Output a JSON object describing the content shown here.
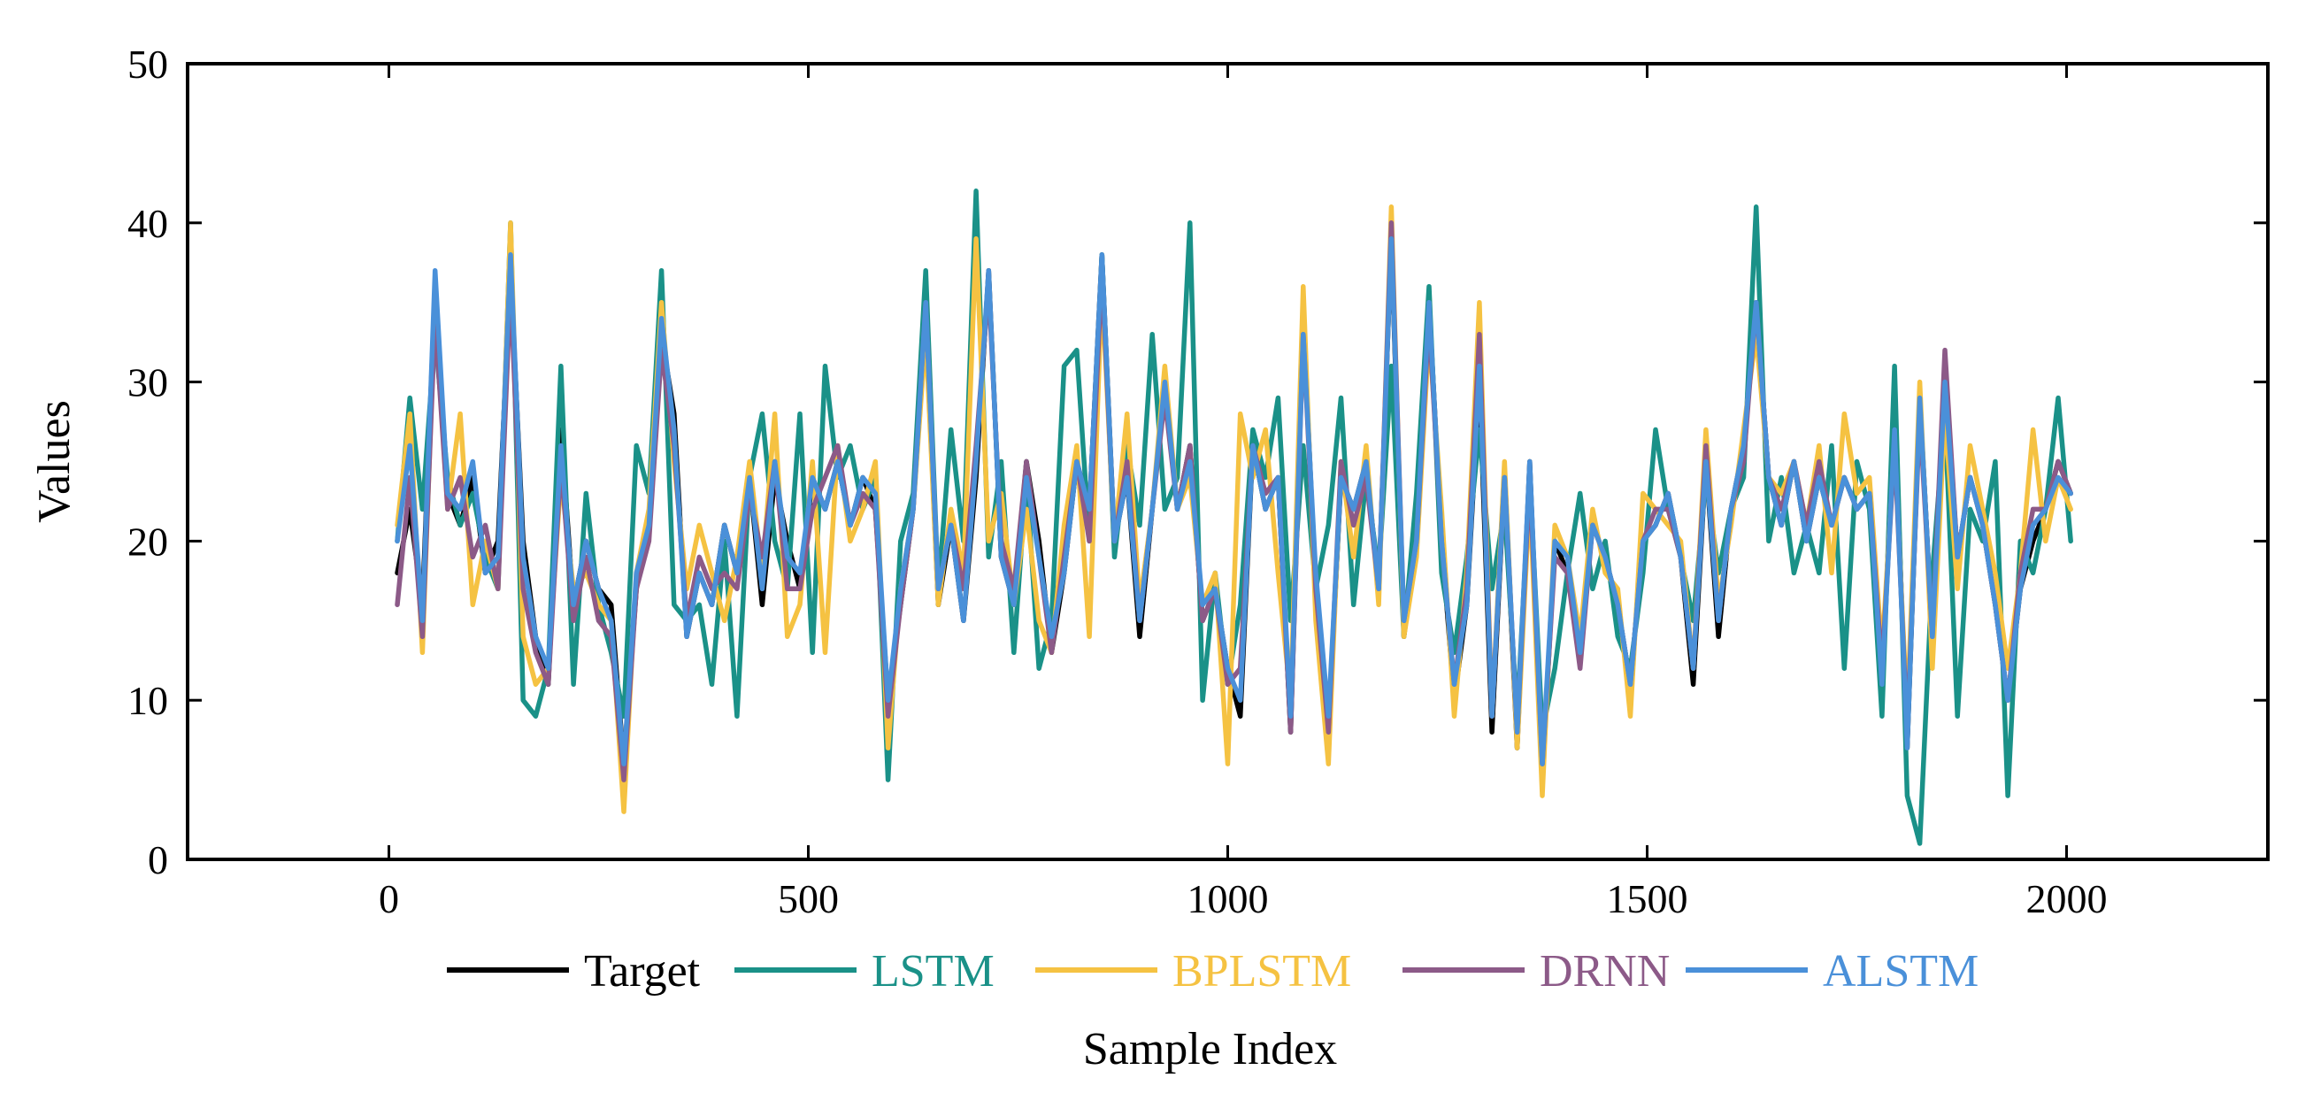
{
  "chart_data": {
    "type": "line",
    "title": "",
    "xlabel": "Sample Index",
    "ylabel": "Values",
    "xlim": [
      -240,
      2240
    ],
    "ylim": [
      0,
      50
    ],
    "x_ticks": [
      0,
      500,
      1000,
      1500,
      2000
    ],
    "y_ticks": [
      0,
      10,
      20,
      30,
      40,
      50
    ],
    "x_tick_labels": [
      "0",
      "500",
      "1000",
      "1500",
      "2000"
    ],
    "y_tick_labels": [
      "0",
      "10",
      "20",
      "30",
      "40",
      "50"
    ],
    "grid": false,
    "legend_position": "bottom-center",
    "x": [
      10,
      25,
      40,
      55,
      70,
      85,
      100,
      115,
      130,
      145,
      160,
      175,
      190,
      205,
      220,
      235,
      250,
      265,
      280,
      295,
      310,
      325,
      340,
      355,
      370,
      385,
      400,
      415,
      430,
      445,
      460,
      475,
      490,
      505,
      520,
      535,
      550,
      565,
      580,
      595,
      610,
      625,
      640,
      655,
      670,
      685,
      700,
      715,
      730,
      745,
      760,
      775,
      790,
      805,
      820,
      835,
      850,
      865,
      880,
      895,
      910,
      925,
      940,
      955,
      970,
      985,
      1000,
      1015,
      1030,
      1045,
      1060,
      1075,
      1090,
      1105,
      1120,
      1135,
      1150,
      1165,
      1180,
      1195,
      1210,
      1225,
      1240,
      1255,
      1270,
      1285,
      1300,
      1315,
      1330,
      1345,
      1360,
      1375,
      1390,
      1405,
      1420,
      1435,
      1450,
      1465,
      1480,
      1495,
      1510,
      1525,
      1540,
      1555,
      1570,
      1585,
      1600,
      1615,
      1630,
      1645,
      1660,
      1675,
      1690,
      1705,
      1720,
      1735,
      1750,
      1765,
      1780,
      1795,
      1810,
      1825,
      1840,
      1855,
      1870,
      1885,
      1900,
      1915,
      1930,
      1945,
      1960,
      1975,
      1990,
      2005
    ],
    "series": [
      {
        "name": "Target",
        "color": "#000000",
        "values": [
          18.0,
          22.0,
          16.0,
          36.0,
          23.0,
          21.0,
          24.0,
          18.0,
          20.0,
          37.0,
          20.0,
          14.0,
          11.0,
          27.0,
          16.0,
          20.0,
          17.0,
          16.0,
          6.0,
          17.0,
          21.0,
          33.0,
          28.0,
          14.0,
          18.0,
          16.0,
          21.0,
          18.0,
          24.0,
          16.0,
          24.0,
          20.0,
          17.0,
          24.0,
          22.0,
          25.0,
          21.0,
          24.0,
          22.0,
          10.0,
          16.0,
          22.0,
          34.0,
          16.0,
          21.0,
          15.0,
          24.0,
          37.0,
          19.0,
          16.0,
          25.0,
          20.0,
          13.0,
          18.0,
          25.0,
          22.0,
          38.0,
          20.0,
          24.0,
          14.0,
          22.0,
          30.0,
          22.0,
          26.0,
          15.0,
          17.0,
          12.0,
          9.0,
          26.0,
          22.0,
          24.0,
          8.0,
          34.0,
          17.0,
          8.0,
          24.0,
          22.0,
          25.0,
          17.0,
          39.0,
          14.0,
          20.0,
          35.0,
          20.0,
          10.0,
          16.0,
          30.0,
          8.0,
          24.0,
          7.0,
          25.0,
          5.0,
          20.0,
          18.0,
          13.0,
          21.0,
          19.0,
          16.0,
          11.0,
          20.0,
          21.0,
          23.0,
          19.0,
          11.0,
          25.0,
          14.0,
          22.0,
          26.0,
          35.0,
          24.0,
          21.0,
          25.0,
          20.0,
          24.0,
          21.0,
          24.0,
          22.0,
          23.0,
          11.0,
          28.0,
          7.0,
          29.0,
          14.0,
          31.0,
          19.0,
          24.0,
          21.0,
          16.0,
          10.0,
          17.0,
          20.0,
          22.0,
          25.0,
          23.0
        ]
      },
      {
        "name": "LSTM",
        "color": "#1a9188",
        "values": [
          20.0,
          29.0,
          22.0,
          33.0,
          24.0,
          21.0,
          23.0,
          19.0,
          17.0,
          40.0,
          10.0,
          9.0,
          12.0,
          31.0,
          11.0,
          23.0,
          16.0,
          13.0,
          9.0,
          26.0,
          23.0,
          37.0,
          16.0,
          15.0,
          16.0,
          11.0,
          20.0,
          9.0,
          24.0,
          28.0,
          20.0,
          17.0,
          28.0,
          13.0,
          31.0,
          24.0,
          26.0,
          22.0,
          24.0,
          5.0,
          20.0,
          23.0,
          37.0,
          17.0,
          27.0,
          20.0,
          42.0,
          19.0,
          25.0,
          13.0,
          24.0,
          12.0,
          15.0,
          31.0,
          32.0,
          20.0,
          38.0,
          19.0,
          26.0,
          21.0,
          33.0,
          22.0,
          24.0,
          40.0,
          10.0,
          18.0,
          11.0,
          16.0,
          27.0,
          24.0,
          29.0,
          15.0,
          26.0,
          17.0,
          21.0,
          29.0,
          16.0,
          24.0,
          18.0,
          31.0,
          14.0,
          23.0,
          36.0,
          18.0,
          13.0,
          19.0,
          27.0,
          17.0,
          22.0,
          9.0,
          24.0,
          8.0,
          12.0,
          18.0,
          23.0,
          17.0,
          20.0,
          14.0,
          12.0,
          18.0,
          27.0,
          22.0,
          19.0,
          15.0,
          24.0,
          18.0,
          22.0,
          24.0,
          41.0,
          20.0,
          24.0,
          18.0,
          21.0,
          18.0,
          26.0,
          12.0,
          25.0,
          22.0,
          9.0,
          31.0,
          4.0,
          1.0,
          18.0,
          28.0,
          9.0,
          22.0,
          20.0,
          25.0,
          4.0,
          20.0,
          18.0,
          22.0,
          29.0,
          20.0
        ]
      },
      {
        "name": "BPLSTM",
        "color": "#f5c242",
        "values": [
          21.0,
          28.0,
          13.0,
          35.0,
          22.0,
          28.0,
          16.0,
          20.0,
          17.0,
          40.0,
          14.0,
          11.0,
          12.0,
          24.0,
          17.0,
          18.0,
          16.0,
          15.0,
          3.0,
          18.0,
          22.0,
          35.0,
          25.0,
          17.0,
          21.0,
          18.0,
          15.0,
          19.0,
          25.0,
          18.0,
          28.0,
          14.0,
          16.0,
          25.0,
          13.0,
          26.0,
          20.0,
          22.0,
          25.0,
          7.0,
          17.0,
          22.0,
          33.0,
          16.0,
          22.0,
          18.0,
          39.0,
          20.0,
          23.0,
          16.0,
          22.0,
          15.0,
          13.0,
          21.0,
          26.0,
          14.0,
          36.0,
          20.0,
          28.0,
          16.0,
          22.0,
          31.0,
          22.0,
          24.0,
          16.0,
          18.0,
          6.0,
          28.0,
          24.0,
          27.0,
          18.0,
          10.0,
          36.0,
          15.0,
          6.0,
          25.0,
          19.0,
          26.0,
          16.0,
          41.0,
          14.0,
          19.0,
          33.0,
          22.0,
          9.0,
          18.0,
          35.0,
          9.0,
          25.0,
          7.0,
          23.0,
          4.0,
          21.0,
          19.0,
          14.0,
          22.0,
          18.0,
          17.0,
          9.0,
          23.0,
          22.0,
          21.0,
          20.0,
          12.0,
          27.0,
          16.0,
          21.0,
          27.0,
          33.0,
          24.0,
          23.0,
          25.0,
          21.0,
          26.0,
          18.0,
          28.0,
          23.0,
          24.0,
          13.0,
          26.0,
          9.0,
          30.0,
          12.0,
          28.0,
          17.0,
          26.0,
          22.0,
          18.0,
          12.0,
          18.0,
          27.0,
          20.0,
          24.0,
          22.0
        ]
      },
      {
        "name": "DRNN",
        "color": "#8c5a88",
        "values": [
          16.0,
          24.0,
          14.0,
          34.0,
          22.0,
          24.0,
          19.0,
          21.0,
          17.0,
          36.0,
          17.0,
          13.0,
          11.0,
          25.0,
          15.0,
          19.0,
          15.0,
          14.0,
          5.0,
          17.0,
          20.0,
          32.0,
          26.0,
          15.0,
          19.0,
          17.0,
          18.0,
          17.0,
          23.0,
          19.0,
          25.0,
          17.0,
          17.0,
          22.0,
          24.0,
          26.0,
          21.0,
          23.0,
          22.0,
          9.0,
          16.0,
          22.0,
          35.0,
          17.0,
          21.0,
          17.0,
          26.0,
          36.0,
          20.0,
          17.0,
          25.0,
          19.0,
          13.0,
          19.0,
          25.0,
          20.0,
          37.0,
          20.0,
          25.0,
          15.0,
          22.0,
          29.0,
          22.0,
          26.0,
          15.0,
          17.0,
          11.0,
          12.0,
          26.0,
          23.0,
          24.0,
          8.0,
          33.0,
          17.0,
          8.0,
          25.0,
          21.0,
          24.0,
          17.0,
          40.0,
          15.0,
          20.0,
          34.0,
          20.0,
          11.0,
          17.0,
          33.0,
          9.0,
          24.0,
          8.0,
          24.0,
          6.0,
          19.0,
          18.0,
          12.0,
          21.0,
          19.0,
          16.0,
          11.0,
          20.0,
          22.0,
          22.0,
          19.0,
          12.0,
          26.0,
          15.0,
          22.0,
          25.0,
          35.0,
          24.0,
          22.0,
          25.0,
          21.0,
          25.0,
          21.0,
          24.0,
          22.0,
          23.0,
          12.0,
          26.0,
          8.0,
          28.0,
          14.0,
          32.0,
          19.0,
          24.0,
          21.0,
          16.0,
          10.0,
          18.0,
          22.0,
          22.0,
          25.0,
          23.0
        ]
      },
      {
        "name": "ALSTM",
        "color": "#4a90d9",
        "values": [
          20.0,
          26.0,
          15.0,
          37.0,
          23.0,
          22.0,
          25.0,
          18.0,
          19.0,
          38.0,
          19.0,
          14.0,
          12.0,
          26.0,
          16.0,
          20.0,
          17.0,
          15.0,
          6.0,
          18.0,
          21.0,
          34.0,
          27.0,
          14.0,
          18.0,
          16.0,
          21.0,
          18.0,
          24.0,
          17.0,
          25.0,
          19.0,
          18.0,
          24.0,
          22.0,
          25.0,
          21.0,
          24.0,
          23.0,
          10.0,
          17.0,
          22.0,
          35.0,
          17.0,
          21.0,
          15.0,
          25.0,
          37.0,
          19.0,
          16.0,
          24.0,
          19.0,
          14.0,
          18.0,
          25.0,
          22.0,
          38.0,
          20.0,
          24.0,
          15.0,
          22.0,
          30.0,
          22.0,
          25.0,
          16.0,
          17.0,
          12.0,
          10.0,
          26.0,
          22.0,
          24.0,
          9.0,
          33.0,
          18.0,
          9.0,
          24.0,
          22.0,
          25.0,
          17.0,
          39.0,
          15.0,
          20.0,
          35.0,
          20.0,
          11.0,
          16.0,
          31.0,
          9.0,
          24.0,
          8.0,
          25.0,
          6.0,
          20.0,
          19.0,
          13.0,
          21.0,
          19.0,
          16.0,
          11.0,
          20.0,
          21.0,
          23.0,
          19.0,
          12.0,
          25.0,
          15.0,
          22.0,
          26.0,
          35.0,
          24.0,
          21.0,
          25.0,
          20.0,
          24.0,
          21.0,
          24.0,
          22.0,
          23.0,
          11.0,
          27.0,
          7.0,
          29.0,
          14.0,
          30.0,
          19.0,
          24.0,
          21.0,
          16.0,
          10.0,
          17.0,
          21.0,
          22.0,
          24.0,
          23.0
        ]
      }
    ]
  }
}
